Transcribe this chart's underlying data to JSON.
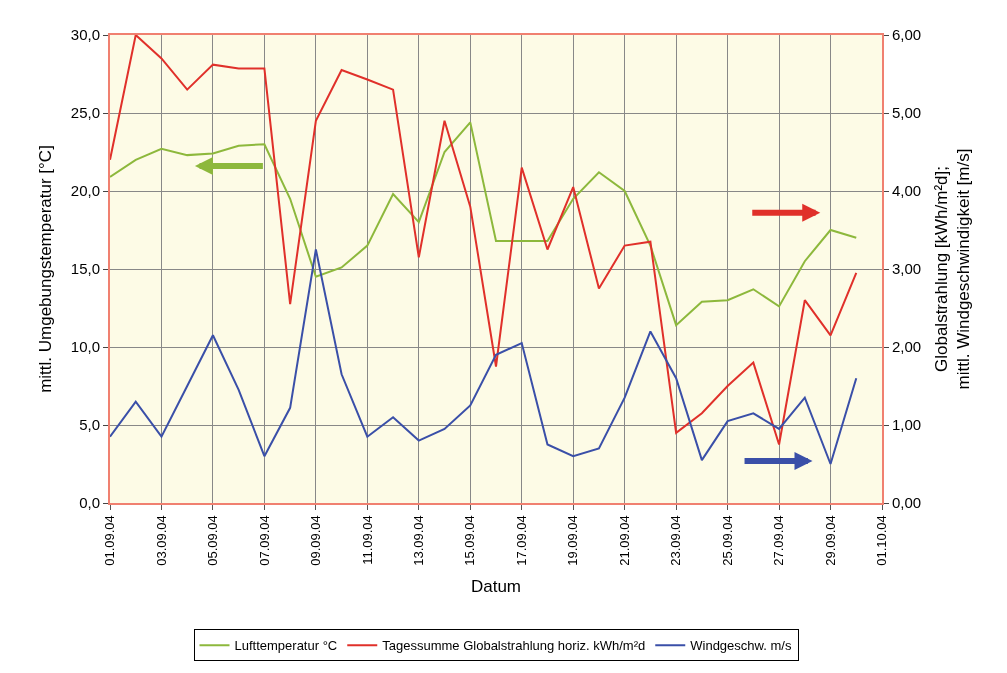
{
  "chart_data": {
    "type": "line",
    "xlabel": "Datum",
    "ylabel": "mittl. Umgebungstemperatur [°C]",
    "y2label": "Globalstrahlung [kWh/m²d];\nmittl. Windgeschwindigkeit [m/s]",
    "x": [
      "--09-01",
      "--09-02",
      "--09-03",
      "--09-04",
      "--09-05",
      "--09-06",
      "--09-07",
      "--09-08",
      "--09-09",
      "--09-10",
      "--09-11",
      "--09-12",
      "--09-13",
      "--09-14",
      "--09-15",
      "--09-16",
      "--09-17",
      "--09-18",
      "--09-19",
      "--09-20",
      "--09-21",
      "--09-22",
      "--09-23",
      "--09-24",
      "--09-25",
      "--09-26",
      "--09-27",
      "--09-28",
      "--09-29",
      "--09-30"
    ],
    "series": [
      {
        "name": "Lufttemperatur °C",
        "color": "#8db83c",
        "values": [
          20.9,
          22.0,
          22.7,
          22.3,
          22.4,
          22.9,
          23.0,
          19.5,
          14.5,
          15.1,
          16.5,
          19.8,
          18.0,
          22.5,
          24.4,
          16.8,
          16.8,
          16.8,
          19.5,
          21.2,
          20.0,
          16.5,
          11.4,
          12.9,
          13.0,
          13.7,
          12.6,
          15.5,
          17.5,
          17.0
        ]
      },
      {
        "name": "Tagessumme Globalstrahlung horiz. kWh/m²d",
        "color": "#e0302a",
        "axis": "y2",
        "values": [
          4.4,
          6.0,
          5.7,
          5.3,
          5.62,
          5.57,
          5.57,
          2.55,
          4.9,
          5.55,
          5.43,
          5.3,
          3.15,
          4.9,
          3.8,
          1.75,
          4.3,
          3.25,
          4.05,
          2.75,
          3.3,
          3.35,
          0.9,
          1.15,
          1.5,
          1.8,
          0.75,
          2.6,
          2.15,
          2.95
        ]
      },
      {
        "name": "Windgeschw. m/s",
        "color": "#3a4fa8",
        "axis": "y2",
        "values": [
          0.85,
          1.3,
          0.85,
          1.5,
          2.15,
          1.45,
          0.6,
          1.22,
          3.25,
          1.65,
          0.85,
          1.1,
          0.8,
          0.95,
          1.25,
          1.9,
          2.05,
          0.75,
          0.6,
          0.7,
          1.35,
          2.2,
          1.6,
          0.55,
          1.05,
          1.15,
          0.95,
          1.35,
          0.5,
          1.6
        ]
      }
    ],
    "xlim": [
      "--09-01",
      "--10-01"
    ],
    "xticks": [
      {
        "value": "--09-01",
        "label": "01.09.04"
      },
      {
        "value": "--09-03",
        "label": "03.09.04"
      },
      {
        "value": "--09-05",
        "label": "05.09.04"
      },
      {
        "value": "--09-07",
        "label": "07.09.04"
      },
      {
        "value": "--09-09",
        "label": "09.09.04"
      },
      {
        "value": "--09-11",
        "label": "11.09.04"
      },
      {
        "value": "--09-13",
        "label": "13.09.04"
      },
      {
        "value": "--09-15",
        "label": "15.09.04"
      },
      {
        "value": "--09-17",
        "label": "17.09.04"
      },
      {
        "value": "--09-19",
        "label": "19.09.04"
      },
      {
        "value": "--09-21",
        "label": "21.09.04"
      },
      {
        "value": "--09-23",
        "label": "23.09.04"
      },
      {
        "value": "--09-25",
        "label": "25.09.04"
      },
      {
        "value": "--09-27",
        "label": "27.09.04"
      },
      {
        "value": "--09-29",
        "label": "29.09.04"
      },
      {
        "value": "--10-01",
        "label": "01.10.04"
      }
    ],
    "ylim": [
      0,
      30
    ],
    "yticks": [
      {
        "value": 0,
        "label": "0,0"
      },
      {
        "value": 5,
        "label": "5,0"
      },
      {
        "value": 10,
        "label": "10,0"
      },
      {
        "value": 15,
        "label": "15,0"
      },
      {
        "value": 20,
        "label": "20,0"
      },
      {
        "value": 25,
        "label": "25,0"
      },
      {
        "value": 30,
        "label": "30,0"
      }
    ],
    "y2lim": [
      0,
      6
    ],
    "y2ticks": [
      {
        "value": 0,
        "label": "0,00"
      },
      {
        "value": 1,
        "label": "1,00"
      },
      {
        "value": 2,
        "label": "2,00"
      },
      {
        "value": 3,
        "label": "3,00"
      },
      {
        "value": 4,
        "label": "4,00"
      },
      {
        "value": 5,
        "label": "5,00"
      },
      {
        "value": 6,
        "label": "6,00"
      }
    ],
    "grid": true,
    "legend": "bottom",
    "marker": "none",
    "line_style": "solid"
  }
}
